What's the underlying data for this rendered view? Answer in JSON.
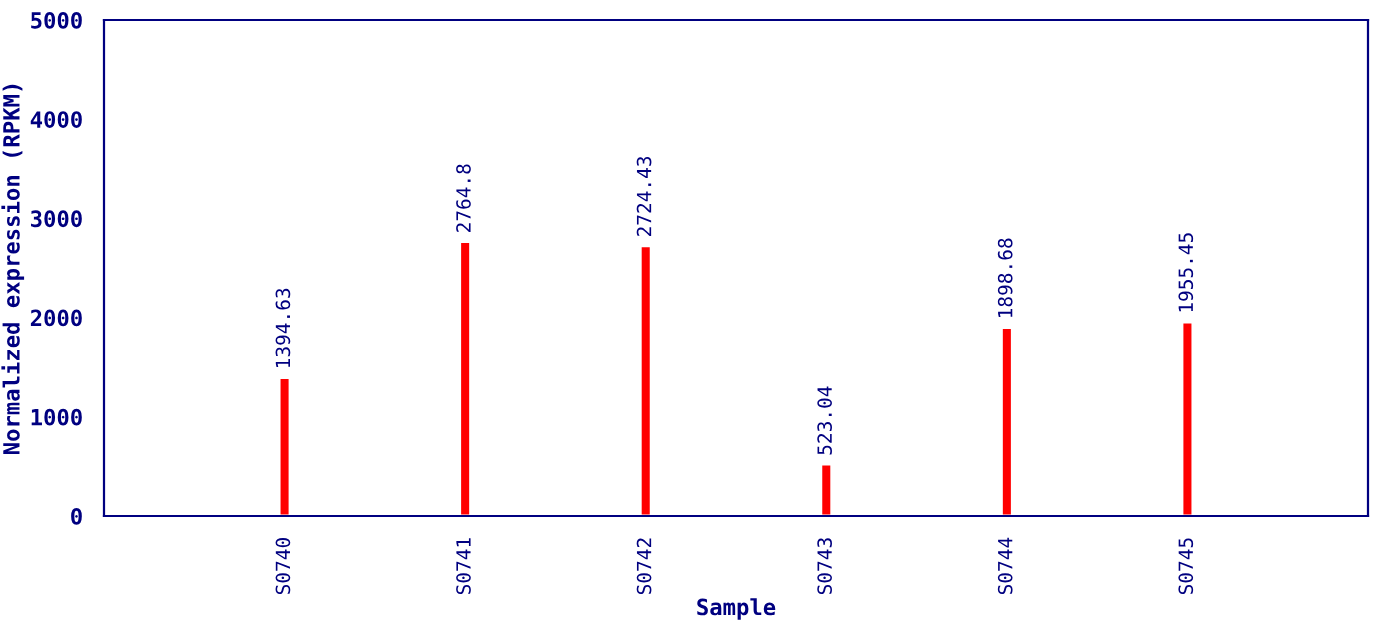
{
  "chart_data": {
    "type": "bar",
    "xlabel": "Sample",
    "ylabel": "Normalized expression (RPKM)",
    "categories": [
      "S0740",
      "S0741",
      "S0742",
      "S0743",
      "S0744",
      "S0745"
    ],
    "values": [
      1394.63,
      2764.8,
      2724.43,
      523.04,
      1898.68,
      1955.45
    ],
    "color": "#ff0000",
    "ylim": [
      0,
      5000
    ],
    "yticks": [
      0,
      1000,
      2000,
      3000,
      4000,
      5000
    ],
    "grid": false,
    "data_labels": true
  }
}
